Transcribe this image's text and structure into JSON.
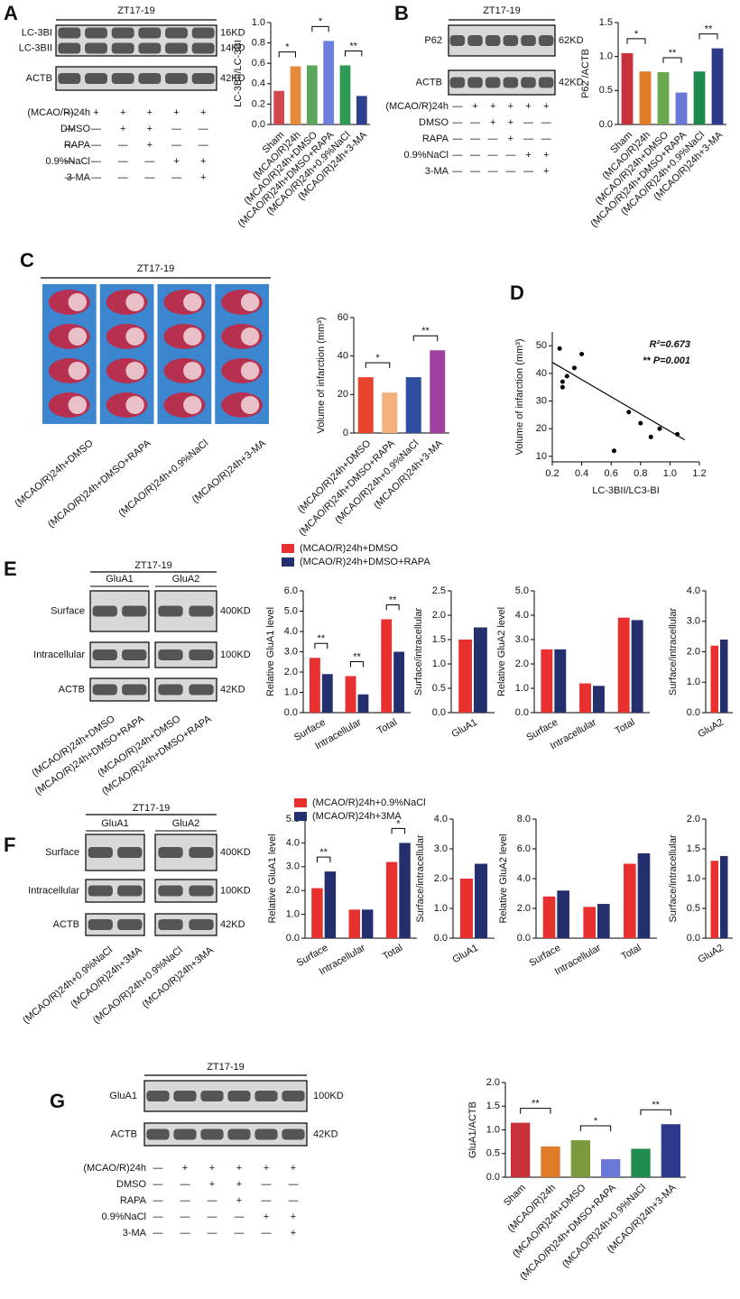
{
  "panel_labels": [
    "A",
    "B",
    "C",
    "D",
    "E",
    "F",
    "G"
  ],
  "blots": [
    {
      "title": "ZT17-19",
      "rows": [
        {
          "labels": [
            "LC-3BI",
            "LC-3BII"
          ],
          "sizes": [
            "16KD",
            "14KD"
          ]
        },
        {
          "labels": [
            "ACTB"
          ],
          "sizes": [
            "42KD"
          ]
        }
      ]
    },
    {
      "title": "ZT17-19",
      "rows": [
        {
          "labels": [
            "P62"
          ],
          "sizes": [
            "62KD"
          ]
        },
        {
          "labels": [
            "ACTB"
          ],
          "sizes": [
            "42KD"
          ]
        }
      ]
    },
    {
      "title": "ZT17-19",
      "lanes": [
        "(MCAO/R)24h+DMSO",
        "(MCAO/R)24h+DMSO+RAPA",
        "(MCAO/R)24h+0.9%NaCl",
        "(MCAO/R)24h+3-MA"
      ]
    },
    {
      "title": "ZT17-19",
      "groups": [
        "GluA1",
        "GluA2"
      ],
      "rows": [
        {
          "labels": [
            "Surface"
          ],
          "sizes": [
            "400KD"
          ]
        },
        {
          "labels": [
            "Intracellular"
          ],
          "sizes": [
            "100KD"
          ]
        },
        {
          "labels": [
            "ACTB"
          ],
          "sizes": [
            "42KD"
          ]
        }
      ],
      "lanes": [
        "(MCAO/R)24h+DMSO",
        "(MCAO/R)24h+DMSO+RAPA",
        "(MCAO/R)24h+DMSO",
        "(MCAO/R)24h+DMSO+RAPA"
      ]
    },
    {
      "title": "ZT17-19",
      "groups": [
        "GluA1",
        "GluA2"
      ],
      "rows": [
        {
          "labels": [
            "Surface"
          ],
          "sizes": [
            "400KD"
          ]
        },
        {
          "labels": [
            "Intracellular"
          ],
          "sizes": [
            "100KD"
          ]
        },
        {
          "labels": [
            "ACTB"
          ],
          "sizes": [
            "42KD"
          ]
        }
      ],
      "lanes": [
        "(MCAO/R)24h+0.9%NaCl",
        "(MCAO/R)24h+3MA",
        "(MCAO/R)24h+0.9%NaCl",
        "(MCAO/R)24h+3MA"
      ]
    },
    {
      "title": "ZT17-19",
      "rows": [
        {
          "labels": [
            "GluA1"
          ],
          "sizes": [
            "100KD"
          ]
        },
        {
          "labels": [
            "ACTB"
          ],
          "sizes": [
            "42KD"
          ]
        }
      ]
    }
  ],
  "treatments": [
    [
      {
        "label": "(MCAO/R)24h",
        "marks": [
          "—",
          "+",
          "+",
          "+",
          "+",
          "+"
        ]
      },
      {
        "label": "DMSO",
        "marks": [
          "—",
          "—",
          "+",
          "+",
          "—",
          "—"
        ]
      },
      {
        "label": "RAPA",
        "marks": [
          "—",
          "—",
          "—",
          "+",
          "—",
          "—"
        ]
      },
      {
        "label": "0.9%NaCl",
        "marks": [
          "—",
          "—",
          "—",
          "—",
          "+",
          "+"
        ]
      },
      {
        "label": "3-MA",
        "marks": [
          "—",
          "—",
          "—",
          "—",
          "—",
          "+"
        ]
      }
    ],
    [
      {
        "label": "(MCAO/R)24h",
        "marks": [
          "—",
          "+",
          "+",
          "+",
          "+",
          "+"
        ]
      },
      {
        "label": "DMSO",
        "marks": [
          "—",
          "—",
          "+",
          "+",
          "—",
          "—"
        ]
      },
      {
        "label": "RAPA",
        "marks": [
          "—",
          "—",
          "—",
          "+",
          "—",
          "—"
        ]
      },
      {
        "label": "0.9%NaCl",
        "marks": [
          "—",
          "—",
          "—",
          "—",
          "+",
          "+"
        ]
      },
      {
        "label": "3-MA",
        "marks": [
          "—",
          "—",
          "—",
          "—",
          "—",
          "+"
        ]
      }
    ],
    [
      {
        "label": "(MCAO/R)24h",
        "marks": [
          "—",
          "+",
          "+",
          "+",
          "+",
          "+"
        ]
      },
      {
        "label": "DMSO",
        "marks": [
          "—",
          "—",
          "+",
          "+",
          "—",
          "—"
        ]
      },
      {
        "label": "RAPA",
        "marks": [
          "—",
          "—",
          "—",
          "+",
          "—",
          "—"
        ]
      },
      {
        "label": "0.9%NaCl",
        "marks": [
          "—",
          "—",
          "—",
          "—",
          "+",
          "+"
        ]
      },
      {
        "label": "3-MA",
        "marks": [
          "—",
          "—",
          "—",
          "—",
          "—",
          "+"
        ]
      }
    ]
  ],
  "chart_data": [
    {
      "type": "bar",
      "ylabel": "LC-3BII/LC-3BI",
      "categories": [
        "Sham",
        "(MCAO/R)24h",
        "(MCAO/R)24h+DMSO",
        "(MCAO/R)24h+DMSO+RAPA",
        "(MCAO/R)24h+0.9%NaCl",
        "(MCAO/R)24h+3-MA"
      ],
      "values": [
        0.33,
        0.57,
        0.58,
        0.82,
        0.58,
        0.28
      ],
      "colors": [
        "#d2464f",
        "#e68a3a",
        "#5aa65a",
        "#6c7fdc",
        "#2e9a55",
        "#2f3f8f"
      ],
      "ylim": [
        0,
        1.0
      ],
      "yticks": [
        {
          "value": 0,
          "label": "0.0"
        },
        0.2,
        0.4,
        0.6,
        0.8,
        {
          "value": 1.0,
          "label": "1.0"
        }
      ],
      "annotations": [
        "*",
        "*",
        "**"
      ]
    },
    {
      "type": "bar",
      "ylabel": "P62 /ACTB",
      "categories": [
        "Sham",
        "(MCAO/R)24h",
        "(MCAO/R)24h+DMSO",
        "(MCAO/R)24h+DMSO+RAPA",
        "(MCAO/R)24h+0.9%NaCl",
        "(MCAO/R)24h+3-MA"
      ],
      "values": [
        1.05,
        0.78,
        0.77,
        0.47,
        0.78,
        1.12
      ],
      "colors": [
        "#c8303a",
        "#e07b28",
        "#6aa84f",
        "#6b78d8",
        "#1e8a4c",
        "#2d3a8c"
      ],
      "ylim": [
        0,
        1.5
      ],
      "yticks": [
        {
          "value": 0,
          "label": "0.0"
        },
        0.5,
        {
          "value": 1.0,
          "label": "1.0"
        },
        1.5
      ],
      "annotations": [
        "*",
        "**",
        "**"
      ]
    },
    {
      "type": "bar",
      "ylabel": "Volume of infarction (mm³)",
      "categories": [
        "(MCAO/R)24h+DMSO",
        "(MCAO/R)24h+DMSO+RAPA",
        "(MCAO/R)24h+0.9%NaCl",
        "(MCAO/R)24h+3-MA"
      ],
      "values": [
        29,
        21,
        29,
        43
      ],
      "colors": [
        "#e8432f",
        "#f3b07a",
        "#2e4fa0",
        "#a0409f"
      ],
      "ylim": [
        0,
        60
      ],
      "yticks": [
        0,
        20,
        40,
        60
      ],
      "annotations": [
        "*",
        "**"
      ]
    },
    {
      "type": "scatter",
      "xlabel": "LC-3BII/LC3-BI",
      "ylabel": "Volume of infarction (mm³)",
      "x": [
        0.25,
        0.27,
        0.27,
        0.3,
        0.35,
        0.4,
        0.62,
        0.72,
        0.8,
        0.87,
        0.93,
        1.05
      ],
      "values": [
        49,
        37,
        35,
        39,
        42,
        47,
        12,
        26,
        22,
        17,
        20,
        18
      ],
      "fit": {
        "x": [
          0.2,
          1.1
        ],
        "values": [
          44,
          16
        ]
      },
      "color": "#000000",
      "xlim": [
        0.2,
        1.2
      ],
      "xticks": [
        0.2,
        0.4,
        0.6,
        0.8,
        {
          "value": 1.0,
          "label": "1.0"
        },
        1.2
      ],
      "ylim": [
        8,
        55
      ],
      "yticks": [
        10,
        20,
        30,
        40,
        50
      ],
      "annotations": [
        "R²=0.673",
        "** P=0.001"
      ]
    },
    {
      "type": "bar",
      "ylabel": "Relative GluA1 level",
      "categories": [
        "Surface",
        "Intracellular",
        "Total"
      ],
      "series": [
        {
          "name": "(MCAO/R)24h+DMSO",
          "color": "#e8312f",
          "values": [
            2.7,
            1.8,
            4.6
          ]
        },
        {
          "name": "(MCAO/R)24h+DMSO+RAPA",
          "color": "#24306e",
          "values": [
            1.9,
            0.9,
            3.0
          ]
        }
      ],
      "ylim": [
        0,
        6
      ],
      "yticks": [
        {
          "value": 0,
          "label": "0.0"
        },
        {
          "value": 1,
          "label": "1.0"
        },
        {
          "value": 2,
          "label": "2.0"
        },
        {
          "value": 3,
          "label": "3.0"
        },
        {
          "value": 4,
          "label": "4.0"
        },
        {
          "value": 5,
          "label": "5.0"
        },
        {
          "value": 6,
          "label": "6.0"
        }
      ],
      "annotations": [
        "**",
        "**",
        "**"
      ]
    },
    {
      "type": "bar",
      "ylabel": "Surface/intracellular",
      "categories": [
        "GluA1"
      ],
      "series": [
        {
          "color": "#e8312f",
          "values": [
            1.5
          ]
        },
        {
          "color": "#24306e",
          "values": [
            1.75
          ]
        }
      ],
      "ylim": [
        0,
        2.5
      ],
      "yticks": [
        {
          "value": 0,
          "label": "0.0"
        },
        0.5,
        {
          "value": 1,
          "label": "1.0"
        },
        1.5,
        {
          "value": 2,
          "label": "2.0"
        },
        2.5
      ]
    },
    {
      "type": "bar",
      "ylabel": "Relative GluA2 level",
      "categories": [
        "Surface",
        "Intracellular",
        "Total"
      ],
      "series": [
        {
          "color": "#e8312f",
          "values": [
            2.6,
            1.2,
            3.9
          ]
        },
        {
          "color": "#24306e",
          "values": [
            2.6,
            1.1,
            3.8
          ]
        }
      ],
      "ylim": [
        0,
        5
      ],
      "yticks": [
        {
          "value": 0,
          "label": "0.0"
        },
        {
          "value": 1,
          "label": "1.0"
        },
        {
          "value": 2,
          "label": "2.0"
        },
        {
          "value": 3,
          "label": "3.0"
        },
        {
          "value": 4,
          "label": "4.0"
        },
        {
          "value": 5,
          "label": "5.0"
        }
      ]
    },
    {
      "type": "bar",
      "ylabel": "Surface/intracellular",
      "categories": [
        "GluA2"
      ],
      "series": [
        {
          "color": "#e8312f",
          "values": [
            2.2
          ]
        },
        {
          "color": "#24306e",
          "values": [
            2.4
          ]
        }
      ],
      "ylim": [
        0,
        4
      ],
      "yticks": [
        {
          "value": 0,
          "label": "0.0"
        },
        {
          "value": 1,
          "label": "1.0"
        },
        {
          "value": 2,
          "label": "2.0"
        },
        {
          "value": 3,
          "label": "3.0"
        },
        {
          "value": 4,
          "label": "4.0"
        }
      ]
    },
    {
      "type": "bar",
      "ylabel": "Relative GluA1 level",
      "categories": [
        "Surface",
        "Intracellular",
        "Total"
      ],
      "series": [
        {
          "name": "(MCAO/R)24h+0.9%NaCl",
          "color": "#e8312f",
          "values": [
            2.1,
            1.2,
            3.2
          ]
        },
        {
          "name": "(MCAO/R)24h+3MA",
          "color": "#24306e",
          "values": [
            2.8,
            1.2,
            4.0
          ]
        }
      ],
      "ylim": [
        0,
        5
      ],
      "yticks": [
        {
          "value": 0,
          "label": "0.0"
        },
        {
          "value": 1,
          "label": "1.0"
        },
        {
          "value": 2,
          "label": "2.0"
        },
        {
          "value": 3,
          "label": "3.0"
        },
        {
          "value": 4,
          "label": "4.0"
        },
        {
          "value": 5,
          "label": "5.0"
        }
      ],
      "annotations": [
        "**",
        "*"
      ]
    },
    {
      "type": "bar",
      "ylabel": "Surface/intracellular",
      "categories": [
        "GluA1"
      ],
      "series": [
        {
          "color": "#e8312f",
          "values": [
            2.0
          ]
        },
        {
          "color": "#24306e",
          "values": [
            2.5
          ]
        }
      ],
      "ylim": [
        0,
        4
      ],
      "yticks": [
        {
          "value": 0,
          "label": "0.0"
        },
        {
          "value": 1,
          "label": "1.0"
        },
        {
          "value": 2,
          "label": "2.0"
        },
        {
          "value": 3,
          "label": "3.0"
        },
        {
          "value": 4,
          "label": "4.0"
        }
      ]
    },
    {
      "type": "bar",
      "ylabel": "Relative GluA2 level",
      "categories": [
        "Surface",
        "Intracellular",
        "Total"
      ],
      "series": [
        {
          "color": "#e8312f",
          "values": [
            2.8,
            2.1,
            5.0
          ]
        },
        {
          "color": "#24306e",
          "values": [
            3.2,
            2.3,
            5.7
          ]
        }
      ],
      "ylim": [
        0,
        8
      ],
      "yticks": [
        {
          "value": 0,
          "label": "0.0"
        },
        {
          "value": 2,
          "label": "2.0"
        },
        {
          "value": 4,
          "label": "4.0"
        },
        {
          "value": 6,
          "label": "6.0"
        },
        {
          "value": 8,
          "label": "8.0"
        }
      ]
    },
    {
      "type": "bar",
      "ylabel": "Surface/intracellular",
      "categories": [
        "GluA2"
      ],
      "series": [
        {
          "color": "#e8312f",
          "values": [
            1.3
          ]
        },
        {
          "color": "#24306e",
          "values": [
            1.38
          ]
        }
      ],
      "ylim": [
        0,
        2
      ],
      "yticks": [
        {
          "value": 0,
          "label": "0.0"
        },
        0.5,
        {
          "value": 1,
          "label": "1.0"
        },
        1.5,
        {
          "value": 2,
          "label": "2.0"
        }
      ]
    },
    {
      "type": "bar",
      "ylabel": "GluA1/ACTB",
      "categories": [
        "Sham",
        "(MCAO/R)24h",
        "(MCAO/R)24h+DMSO",
        "(MCAO/R)24h+DMSO+RAPA",
        "(MCAO/R)24h+0.9%NaCl",
        "(MCAO/R)24h+3-MA"
      ],
      "values": [
        1.15,
        0.65,
        0.78,
        0.38,
        0.6,
        1.12
      ],
      "colors": [
        "#c8303a",
        "#e07b28",
        "#7a9a3c",
        "#6b78d8",
        "#1e8a4c",
        "#2d3a8c"
      ],
      "ylim": [
        0,
        2.0
      ],
      "yticks": [
        {
          "value": 0,
          "label": "0.0"
        },
        0.5,
        {
          "value": 1,
          "label": "1.0"
        },
        1.5,
        {
          "value": 2,
          "label": "2.0"
        }
      ],
      "annotations": [
        "**",
        "*",
        "**"
      ]
    }
  ]
}
